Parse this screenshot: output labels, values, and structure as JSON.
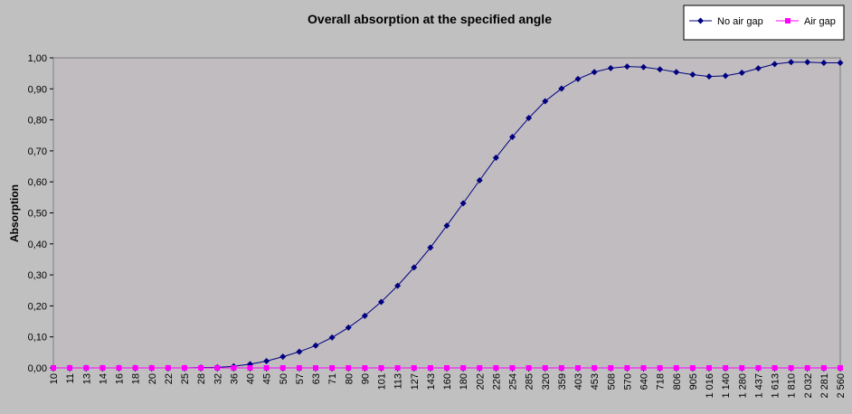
{
  "chart_data": {
    "type": "line",
    "title": "Overall absorption at the specified angle",
    "xlabel": "",
    "ylabel": "Absorption",
    "ylim": [
      0,
      1
    ],
    "y_ticks": [
      "0,00",
      "0,10",
      "0,20",
      "0,30",
      "0,40",
      "0,50",
      "0,60",
      "0,70",
      "0,80",
      "0,90",
      "1,00"
    ],
    "grid": false,
    "legend_position": "top-right",
    "plot_background": "#c0bcc0",
    "categories": [
      "10",
      "11",
      "13",
      "14",
      "16",
      "18",
      "20",
      "22",
      "25",
      "28",
      "32",
      "36",
      "40",
      "45",
      "50",
      "57",
      "63",
      "71",
      "80",
      "90",
      "101",
      "113",
      "127",
      "143",
      "160",
      "180",
      "202",
      "226",
      "254",
      "285",
      "320",
      "359",
      "403",
      "453",
      "508",
      "570",
      "640",
      "718",
      "806",
      "905",
      "1 016",
      "1 140",
      "1 280",
      "1 437",
      "1 613",
      "1 810",
      "2 032",
      "2 281",
      "2 560"
    ],
    "series": [
      {
        "name": "No air gap",
        "color": "#000080",
        "marker": "diamond",
        "values": [
          0,
          0,
          0,
          0,
          0,
          0,
          0,
          0,
          0,
          0.001,
          0.002,
          0.005,
          0.012,
          0.022,
          0.036,
          0.052,
          0.072,
          0.098,
          0.13,
          0.168,
          0.213,
          0.265,
          0.324,
          0.388,
          0.459,
          0.531,
          0.605,
          0.678,
          0.745,
          0.806,
          0.86,
          0.901,
          0.932,
          0.954,
          0.967,
          0.972,
          0.97,
          0.963,
          0.954,
          0.946,
          0.94,
          0.942,
          0.952,
          0.966,
          0.98,
          0.986,
          0.986,
          0.984,
          0.984
        ]
      },
      {
        "name": "Air gap",
        "color": "#ff00ff",
        "marker": "square",
        "values": [
          0,
          0,
          0,
          0,
          0,
          0,
          0,
          0,
          0,
          0,
          0,
          0,
          0,
          0,
          0,
          0,
          0,
          0,
          0,
          0,
          0,
          0,
          0,
          0,
          0,
          0,
          0,
          0,
          0,
          0,
          0,
          0,
          0,
          0,
          0,
          0,
          0,
          0,
          0,
          0,
          0,
          0,
          0,
          0,
          0,
          0,
          0,
          0,
          0
        ]
      }
    ]
  }
}
